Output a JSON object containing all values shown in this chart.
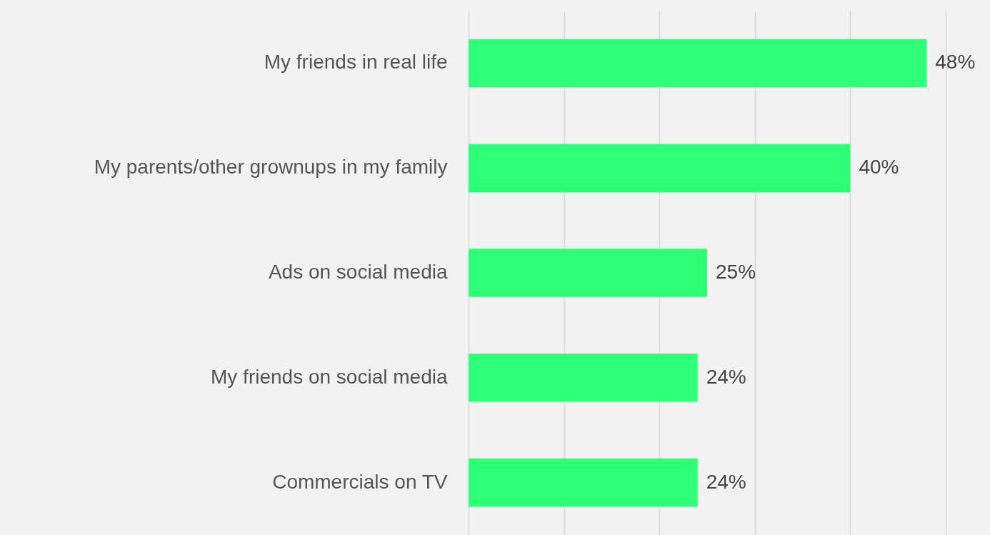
{
  "chart_data": {
    "type": "bar",
    "orientation": "horizontal",
    "categories": [
      "My friends in real life",
      "My parents/other grownups in my family",
      "Ads on social media",
      "My friends on social media",
      "Commercials on TV"
    ],
    "values": [
      48,
      40,
      25,
      24,
      24
    ],
    "color": "#2eff76",
    "value_labels": [
      "48%",
      "40%",
      "25%",
      "24%",
      "24%"
    ],
    "grid": "x",
    "tick_labels": "y"
  }
}
